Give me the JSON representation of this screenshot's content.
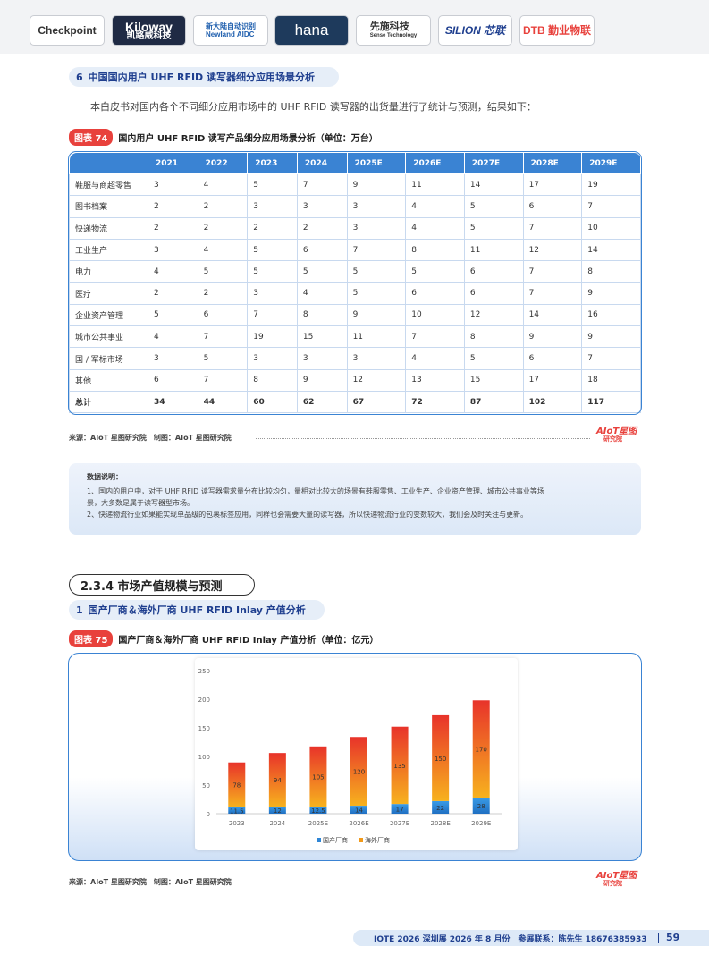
{
  "logos": [
    {
      "name": "Checkpoint"
    },
    {
      "name": "Kiloway",
      "sub": "凯路威科技"
    },
    {
      "name": "新大陆自动识别",
      "sub": "Newland AIDC"
    },
    {
      "name": "hana"
    },
    {
      "name": "先施科技",
      "sub": "Sense Technology"
    },
    {
      "name": "SILION 芯联"
    },
    {
      "name": "DTB 勤业物联"
    }
  ],
  "section6": {
    "number": "6",
    "title": "中国国内用户 UHF RFID 读写器细分应用场景分析"
  },
  "intro": "本白皮书对国内各个不同细分应用市场中的 UHF RFID 读写器的出货量进行了统计与预测，结果如下：",
  "fig74": {
    "tag": "图表 74",
    "title": "国内用户 UHF RFID 读写产品细分应用场景分析（单位：万台）",
    "headers": [
      "",
      "2021",
      "2022",
      "2023",
      "2024",
      "2025E",
      "2026E",
      "2027E",
      "2028E",
      "2029E"
    ],
    "rows": [
      [
        "鞋服与商超零售",
        "3",
        "4",
        "5",
        "7",
        "9",
        "11",
        "14",
        "17",
        "19"
      ],
      [
        "图书档案",
        "2",
        "2",
        "3",
        "3",
        "3",
        "4",
        "5",
        "6",
        "7"
      ],
      [
        "快递物流",
        "2",
        "2",
        "2",
        "2",
        "3",
        "4",
        "5",
        "7",
        "10"
      ],
      [
        "工业生产",
        "3",
        "4",
        "5",
        "6",
        "7",
        "8",
        "11",
        "12",
        "14"
      ],
      [
        "电力",
        "4",
        "5",
        "5",
        "5",
        "5",
        "5",
        "6",
        "7",
        "8"
      ],
      [
        "医疗",
        "2",
        "2",
        "3",
        "4",
        "5",
        "6",
        "6",
        "7",
        "9"
      ],
      [
        "企业资产管理",
        "5",
        "6",
        "7",
        "8",
        "9",
        "10",
        "12",
        "14",
        "16"
      ],
      [
        "城市公共事业",
        "4",
        "7",
        "19",
        "15",
        "11",
        "7",
        "8",
        "9",
        "9"
      ],
      [
        "国 / 军标市场",
        "3",
        "5",
        "3",
        "3",
        "3",
        "4",
        "5",
        "6",
        "7"
      ],
      [
        "其他",
        "6",
        "7",
        "8",
        "9",
        "12",
        "13",
        "15",
        "17",
        "18"
      ]
    ],
    "total": [
      "总计",
      "34",
      "44",
      "60",
      "62",
      "67",
      "72",
      "87",
      "102",
      "117"
    ]
  },
  "source": "来源：AIoT 星图研究院　制图：AIoT 星图研究院",
  "brand": {
    "name": "AIoT星图",
    "sub": "研究院"
  },
  "notes": {
    "heading": "数据说明：",
    "items": [
      "1、国内的用户中，对于 UHF RFID 读写器需求量分布比较均匀，量相对比较大的场景有鞋服零售、工业生产、企业资产管理、城市公共事业等场",
      "景，大多数是属于读写器型市场。",
      "2、快递物流行业如果能实现单品级的包裹标签应用，同样也会需要大量的读写器，所以快递物流行业的变数较大，我们会及时关注与更新。"
    ]
  },
  "section234": "2.3.4 市场产值规模与预测",
  "section1": {
    "number": "1",
    "title": "国产厂商＆海外厂商 UHF RFID Inlay 产值分析"
  },
  "fig75": {
    "tag": "图表 75",
    "title": "国产厂商＆海外厂商 UHF RFID Inlay 产值分析（单位：亿元）"
  },
  "chart_data": {
    "type": "bar",
    "stacked": true,
    "categories": [
      "2023",
      "2024",
      "2025E",
      "2026E",
      "2027E",
      "2028E",
      "2029E"
    ],
    "series": [
      {
        "name": "国产厂商",
        "values": [
          11.5,
          12,
          12.5,
          14,
          17,
          22,
          28
        ],
        "labels": [
          "11.5",
          "12",
          "12.5",
          "14",
          "17",
          "22",
          "28"
        ],
        "color": "#2f86d6"
      },
      {
        "name": "海外厂商",
        "values": [
          78,
          94,
          105,
          120,
          135,
          150,
          170
        ],
        "labels": [
          "78",
          "94",
          "105",
          "120",
          "135",
          "150",
          "170"
        ],
        "color": "#f29a1a"
      }
    ],
    "yticks": [
      "0",
      "50",
      "100",
      "150",
      "200",
      "250"
    ],
    "ylim": [
      0,
      250
    ],
    "legend": "bottom-center",
    "grid": false
  },
  "footer": {
    "text": "IOTE 2026 深圳展 2026 年 8 月份　参展联系：陈先生 18676385933",
    "page": "59"
  }
}
